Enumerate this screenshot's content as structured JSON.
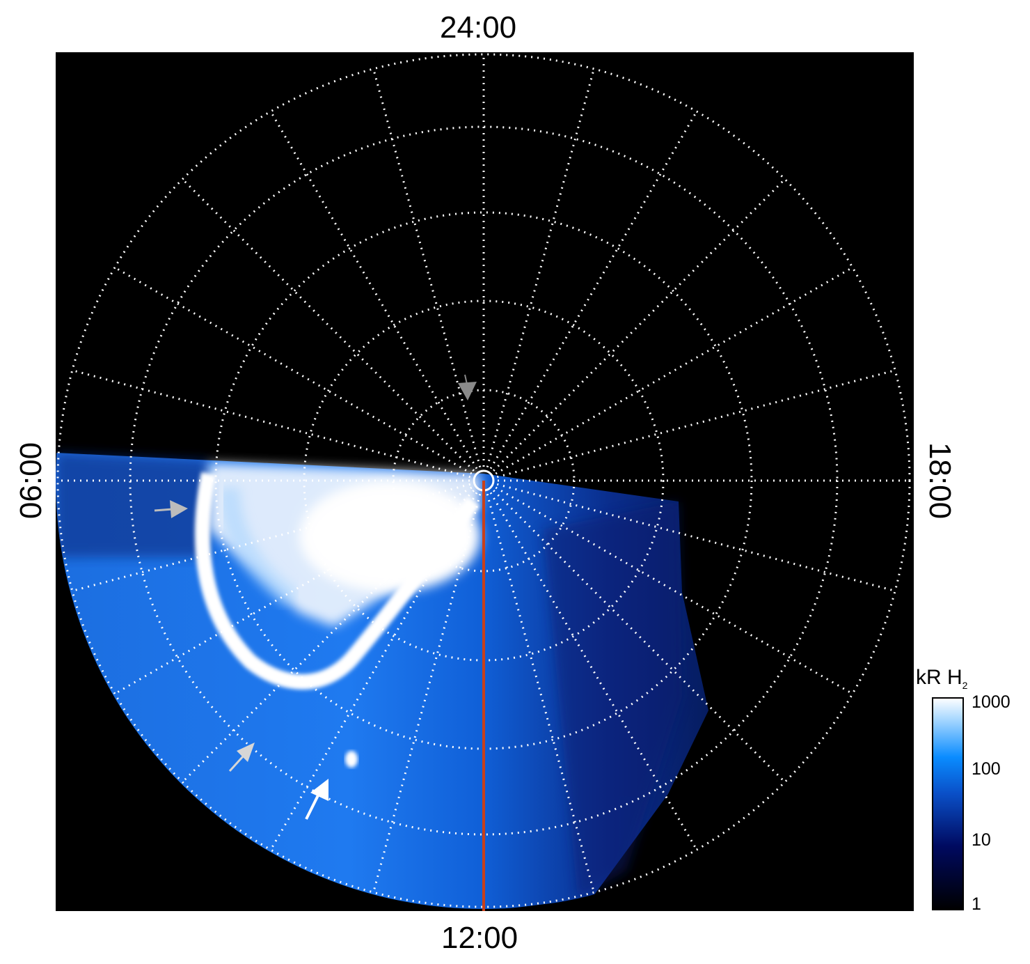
{
  "local_time_labels": {
    "top": "24:00",
    "bottom": "12:00",
    "left": "06:00",
    "right": "18:00"
  },
  "colorbar": {
    "unit": "kR H",
    "unit_subscript": "2",
    "scale": "log",
    "range": [
      1,
      1000
    ],
    "ticks": [
      "1000",
      "100",
      "10",
      "1"
    ],
    "colors": [
      "#000000",
      "#000a60",
      "#0a50c8",
      "#0a8cff",
      "#a8d8ff",
      "#ffffff"
    ]
  },
  "grid": {
    "style": "dotted",
    "color": "#ffffff",
    "meridian_step_hours": 1
  },
  "meridian_line_color": "#c8401a",
  "arrows": [
    {
      "color": "#8a8a8a"
    },
    {
      "color": "#bcbcbc"
    },
    {
      "color": "#d6d6d6"
    },
    {
      "color": "#ffffff"
    }
  ]
}
